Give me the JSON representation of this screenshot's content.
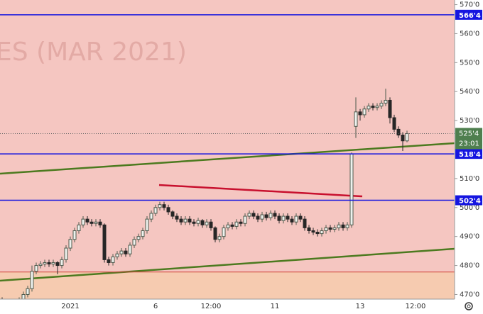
{
  "chart_data": {
    "type": "candlestick",
    "watermark": "ES (MAR 2021)",
    "categories": [
      null,
      null,
      null,
      null,
      null,
      null,
      null,
      null,
      null,
      null,
      null,
      null,
      null,
      null,
      null,
      null,
      "2021",
      null,
      null,
      null,
      null,
      null,
      null,
      null,
      null,
      null,
      null,
      null,
      null,
      null,
      null,
      null,
      null,
      null,
      null,
      null,
      "6",
      null,
      null,
      null,
      null,
      null,
      null,
      null,
      null,
      null,
      null,
      null,
      null,
      "12:00",
      null,
      null,
      null,
      null,
      null,
      null,
      null,
      null,
      null,
      null,
      null,
      null,
      null,
      null,
      "11",
      null,
      null,
      null,
      null,
      null,
      null,
      null,
      null,
      null,
      null,
      null,
      null,
      null,
      null,
      null,
      null,
      null,
      null,
      null,
      "13",
      null,
      null,
      null,
      null,
      null,
      null,
      null,
      null,
      null,
      null,
      null,
      null,
      "12:00",
      null,
      null,
      null,
      null,
      null,
      null,
      null,
      null,
      null
    ],
    "open": [
      468,
      467,
      466.5,
      466,
      467.5,
      468,
      470,
      472,
      478,
      480,
      480.5,
      481,
      480.5,
      481,
      480,
      482,
      486,
      489,
      492,
      494,
      496,
      495,
      494.5,
      495,
      494,
      482,
      481,
      483,
      484,
      485,
      484,
      487,
      489,
      490,
      492,
      496,
      498,
      500,
      501,
      500,
      498.5,
      497,
      496,
      495,
      496,
      495,
      494.5,
      495.5,
      494,
      495,
      493,
      489,
      490,
      493,
      494,
      493.5,
      495,
      494.5,
      497,
      498,
      497,
      496,
      497.5,
      496.5,
      498,
      497,
      495.5,
      497,
      496,
      495,
      497,
      496,
      493,
      492,
      491.5,
      491,
      492,
      493,
      492.5,
      493,
      494,
      493,
      494,
      528,
      533,
      532,
      534,
      535,
      534.5,
      535,
      536,
      537,
      531,
      527,
      525,
      523,
      null,
      null,
      null,
      null,
      null,
      null,
      null,
      null,
      null,
      null,
      null
    ],
    "high": [
      469,
      468,
      467.5,
      468.5,
      469,
      471,
      473,
      480,
      481,
      481.5,
      482,
      482,
      482,
      481.5,
      483,
      487,
      490,
      493,
      495,
      497,
      497,
      496,
      496,
      496,
      494.5,
      483,
      484,
      485,
      486,
      486,
      488,
      490,
      491,
      493,
      497,
      499,
      501,
      502,
      502,
      501,
      499,
      498,
      497,
      497,
      497,
      496,
      496.5,
      496,
      496,
      496,
      493.5,
      491,
      494,
      495,
      495,
      496,
      496,
      498,
      499,
      499,
      498,
      498.5,
      498.5,
      499,
      499,
      498,
      498,
      498,
      497,
      498,
      498,
      497,
      494,
      493,
      492.5,
      493,
      494,
      494,
      494,
      495,
      495,
      495,
      519,
      538,
      534,
      535,
      536,
      536,
      536,
      537,
      541,
      538,
      532,
      528,
      526,
      526.5,
      null,
      null,
      null,
      null,
      null,
      null,
      null,
      null,
      null,
      null,
      null
    ],
    "low": [
      465.5,
      465.5,
      465,
      465.5,
      466.5,
      467,
      469,
      471,
      477,
      479,
      479.5,
      479.5,
      479.5,
      477,
      479,
      481,
      485,
      488,
      491,
      493,
      494,
      493.5,
      493.5,
      493,
      481,
      480,
      480,
      482,
      483,
      483,
      483,
      486,
      488,
      489,
      491,
      495,
      497,
      499,
      499,
      497.5,
      496,
      495,
      494,
      494,
      494,
      493.5,
      493.5,
      493,
      493,
      492,
      488,
      488,
      489,
      492,
      492.5,
      492.5,
      493.5,
      493.5,
      496,
      496,
      495,
      495,
      495.5,
      495.5,
      496,
      494.5,
      494.5,
      495,
      494,
      494,
      495,
      492,
      491,
      490.5,
      490,
      490,
      491,
      491.5,
      491.5,
      492,
      492,
      492,
      493,
      524,
      530,
      531,
      533,
      533.5,
      533.5,
      534,
      535,
      529,
      526,
      524,
      519.5,
      522.5,
      null,
      null,
      null,
      null,
      null,
      null,
      null,
      null,
      null,
      null,
      null
    ],
    "close": [
      467,
      466.5,
      466,
      467.5,
      468,
      470,
      472,
      478,
      480,
      480.5,
      481,
      480.5,
      481,
      480,
      482,
      486,
      489,
      492,
      494,
      496,
      495,
      494.5,
      495,
      494,
      482,
      481,
      483,
      484,
      485,
      484,
      487,
      489,
      490,
      492,
      496,
      498,
      500,
      501,
      500,
      498.5,
      497,
      496,
      495,
      496,
      495,
      494.5,
      495.5,
      494,
      495,
      493,
      489,
      490,
      493,
      494,
      493.5,
      495,
      494.5,
      497,
      498,
      497,
      496,
      497.5,
      496.5,
      498,
      497,
      495.5,
      497,
      496,
      495,
      497,
      496,
      493,
      492,
      491.5,
      491,
      492,
      493,
      492.5,
      493,
      494,
      493,
      494,
      518.5,
      533,
      532,
      534,
      535,
      534.5,
      535,
      536,
      537,
      531,
      527,
      525,
      523,
      525.5,
      null,
      null,
      null,
      null,
      null,
      null,
      null,
      null,
      null,
      null,
      null
    ],
    "up_color": "#4d5a4d",
    "down_color": "#262626",
    "ylim": [
      468.4,
      571.6
    ],
    "yticks": [
      {
        "value": 470,
        "label": "470'0"
      },
      {
        "value": 480,
        "label": "480'0"
      },
      {
        "value": 490,
        "label": "490'0"
      },
      {
        "value": 500,
        "label": "500'0"
      },
      {
        "value": 510,
        "label": "510'0"
      },
      {
        "value": 530,
        "label": "530'0"
      },
      {
        "value": 540,
        "label": "540'0"
      },
      {
        "value": 550,
        "label": "550'0"
      },
      {
        "value": 560,
        "label": "560'0"
      },
      {
        "value": 570,
        "label": "570'0"
      }
    ],
    "levels": [
      {
        "value": 566.5,
        "label": "566'4"
      },
      {
        "value": 518.5,
        "label": "518'4"
      },
      {
        "value": 502.5,
        "label": "502'4"
      }
    ],
    "level_color": "#1515e0",
    "last_price": {
      "value": 525.5,
      "label": "525'4"
    },
    "countdown": "23:01",
    "zone_boundary": 477.75
  }
}
